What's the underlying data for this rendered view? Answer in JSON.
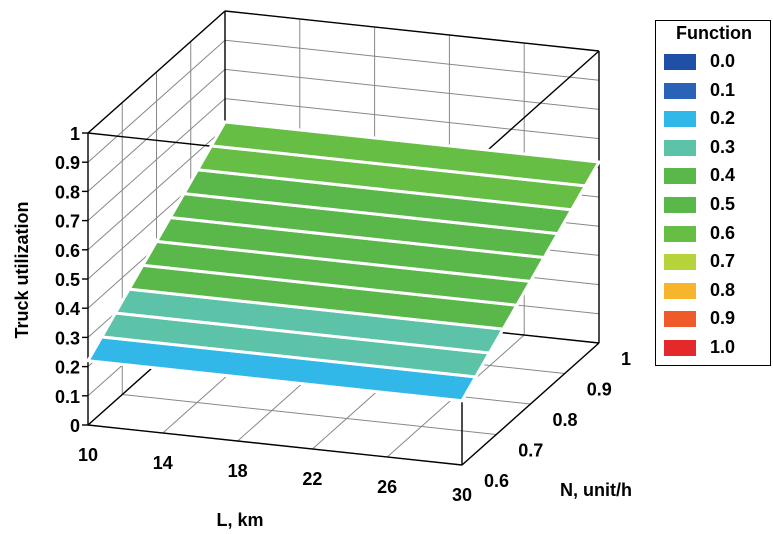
{
  "chart_data": {
    "type": "surface3d",
    "zlabel": "Truck utilization",
    "xlabel": "L, km",
    "ylabel": "N, unit/h",
    "x_ticks": [
      "10",
      "14",
      "18",
      "22",
      "26",
      "30"
    ],
    "y_ticks": [
      "0.6",
      "0.7",
      "0.8",
      "0.9",
      "1"
    ],
    "z_ticks": [
      "0",
      "0.1",
      "0.2",
      "0.3",
      "0.4",
      "0.5",
      "0.6",
      "0.7",
      "0.8",
      "0.9",
      "1"
    ],
    "xlim": [
      10,
      30
    ],
    "ylim": [
      0.6,
      1.0
    ],
    "zlim": [
      0,
      1
    ],
    "grid": true,
    "legend_position": "top-right",
    "surface": {
      "description_rows_by_N": [
        {
          "N": 0.6,
          "z_at_L10": 0.22,
          "z_at_L30": 0.22
        },
        {
          "N": 0.64,
          "z_at_L10": 0.26,
          "z_at_L30": 0.26
        },
        {
          "N": 0.68,
          "z_at_L10": 0.3,
          "z_at_L30": 0.3
        },
        {
          "N": 0.72,
          "z_at_L10": 0.34,
          "z_at_L30": 0.34
        },
        {
          "N": 0.76,
          "z_at_L10": 0.38,
          "z_at_L30": 0.38
        },
        {
          "N": 0.8,
          "z_at_L10": 0.42,
          "z_at_L30": 0.42
        },
        {
          "N": 0.84,
          "z_at_L10": 0.46,
          "z_at_L30": 0.46
        },
        {
          "N": 0.88,
          "z_at_L10": 0.5,
          "z_at_L30": 0.5
        },
        {
          "N": 0.92,
          "z_at_L10": 0.54,
          "z_at_L30": 0.54
        },
        {
          "N": 0.96,
          "z_at_L10": 0.58,
          "z_at_L30": 0.58
        },
        {
          "N": 1.0,
          "z_at_L10": 0.62,
          "z_at_L30": 0.62
        }
      ]
    },
    "legend": {
      "title": "Function",
      "entries": [
        {
          "label": "0.0",
          "color": "#1f4fa6"
        },
        {
          "label": "0.1",
          "color": "#2a62b8"
        },
        {
          "label": "0.2",
          "color": "#31b7e8"
        },
        {
          "label": "0.3",
          "color": "#5cc2a8"
        },
        {
          "label": "0.4",
          "color": "#5ab84a"
        },
        {
          "label": "0.5",
          "color": "#5ab84a"
        },
        {
          "label": "0.6",
          "color": "#66be44"
        },
        {
          "label": "0.7",
          "color": "#b6d33a"
        },
        {
          "label": "0.8",
          "color": "#f6b52a"
        },
        {
          "label": "0.9",
          "color": "#ee5a28"
        },
        {
          "label": "1.0",
          "color": "#e5292b"
        }
      ]
    }
  }
}
